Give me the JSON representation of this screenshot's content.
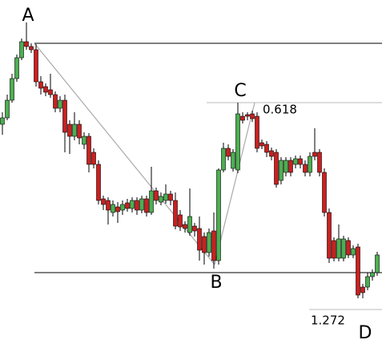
{
  "chart_data": {
    "type": "candlestick",
    "ylim": [
      0,
      444
    ],
    "up_color": "#4caf50",
    "down_color": "#cc1f1f",
    "open": [
      289,
      297,
      319,
      346,
      372,
      392,
      386,
      382,
      342,
      336,
      332,
      326,
      309,
      319,
      289,
      274,
      289,
      264,
      274,
      254,
      239,
      196,
      194,
      179,
      186,
      182,
      191,
      184,
      194,
      182,
      196,
      179,
      206,
      192,
      194,
      202,
      194,
      176,
      164,
      154,
      162,
      159,
      149,
      129,
      156,
      119,
      232,
      259,
      234,
      232,
      299,
      301,
      302,
      299,
      266,
      264,
      256,
      254,
      219,
      229,
      244,
      239,
      246,
      239,
      229,
      254,
      254,
      229,
      179,
      144,
      122,
      122,
      144,
      126,
      136,
      86,
      86,
      99,
      104
    ],
    "high": [
      304,
      326,
      352,
      376,
      396,
      416,
      390,
      389,
      349,
      340,
      352,
      330,
      324,
      326,
      294,
      304,
      294,
      279,
      278,
      259,
      244,
      200,
      198,
      194,
      192,
      194,
      196,
      198,
      198,
      200,
      200,
      236,
      210,
      204,
      214,
      206,
      204,
      182,
      168,
      209,
      166,
      174,
      154,
      159,
      179,
      234,
      266,
      264,
      258,
      316,
      304,
      304,
      306,
      304,
      270,
      268,
      260,
      258,
      248,
      248,
      248,
      250,
      250,
      244,
      254,
      284,
      258,
      234,
      184,
      148,
      164,
      150,
      148,
      138,
      140,
      90,
      104,
      108,
      130
    ],
    "low": [
      276,
      294,
      316,
      342,
      369,
      382,
      378,
      336,
      326,
      324,
      322,
      304,
      304,
      254,
      252,
      269,
      264,
      258,
      229,
      234,
      189,
      182,
      164,
      174,
      166,
      176,
      180,
      179,
      176,
      178,
      174,
      176,
      189,
      188,
      190,
      188,
      158,
      156,
      154,
      150,
      149,
      119,
      114,
      124,
      109,
      114,
      229,
      244,
      230,
      228,
      290,
      294,
      292,
      254,
      258,
      248,
      244,
      210,
      214,
      224,
      224,
      234,
      234,
      224,
      224,
      244,
      224,
      174,
      116,
      118,
      118,
      118,
      122,
      122,
      72,
      72,
      82,
      94,
      100
    ],
    "close": [
      297,
      319,
      346,
      372,
      392,
      386,
      382,
      342,
      334,
      329,
      326,
      309,
      319,
      279,
      274,
      289,
      272,
      274,
      239,
      239,
      194,
      189,
      182,
      189,
      180,
      189,
      184,
      194,
      182,
      196,
      179,
      206,
      194,
      199,
      202,
      194,
      162,
      161,
      159,
      174,
      156,
      132,
      129,
      154,
      119,
      232,
      259,
      249,
      254,
      302,
      294,
      299,
      296,
      259,
      262,
      254,
      249,
      214,
      244,
      244,
      229,
      246,
      239,
      229,
      249,
      249,
      229,
      179,
      122,
      122,
      146,
      146,
      126,
      134,
      76,
      79,
      99,
      104,
      126
    ],
    "points": [
      "A",
      "B",
      "C",
      "D"
    ],
    "levels": [
      {
        "value": 390
      },
      {
        "value": 104
      },
      {
        "label": "0.618",
        "value": 316
      },
      {
        "label": "1.272",
        "value": 58
      }
    ]
  }
}
